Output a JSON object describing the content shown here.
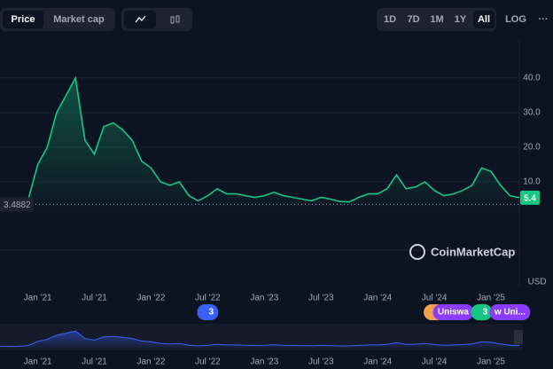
{
  "toolbar": {
    "left_tabs": [
      "Price",
      "Market cap"
    ],
    "ranges": [
      "1D",
      "7D",
      "1M",
      "1Y",
      "All"
    ],
    "log": "LOG",
    "more": "···"
  },
  "chart_data": {
    "type": "line",
    "x": [
      "2020-09",
      "2020-10",
      "2020-11",
      "2020-12",
      "2021-01",
      "2021-02",
      "2021-03",
      "2021-04",
      "2021-05",
      "2021-06",
      "2021-07",
      "2021-08",
      "2021-09",
      "2021-10",
      "2021-11",
      "2021-12",
      "2022-01",
      "2022-02",
      "2022-03",
      "2022-04",
      "2022-05",
      "2022-06",
      "2022-07",
      "2022-08",
      "2022-09",
      "2022-10",
      "2022-11",
      "2022-12",
      "2023-01",
      "2023-02",
      "2023-03",
      "2023-04",
      "2023-05",
      "2023-06",
      "2023-07",
      "2023-08",
      "2023-09",
      "2023-10",
      "2023-11",
      "2023-12",
      "2024-01",
      "2024-02",
      "2024-03",
      "2024-04",
      "2024-05",
      "2024-06",
      "2024-07",
      "2024-08",
      "2024-09",
      "2024-10",
      "2024-11",
      "2024-12",
      "2025-01",
      "2025-02",
      "2025-03",
      "2025-04"
    ],
    "series": [
      {
        "name": "Price",
        "color": "#16c784",
        "values": [
          3.5,
          3.0,
          3.5,
          5,
          15,
          20,
          30,
          35,
          40,
          22,
          18,
          26,
          27,
          25,
          22,
          16,
          14,
          10,
          9,
          10,
          6,
          4.5,
          6,
          8,
          6.5,
          6.5,
          6,
          5.5,
          6,
          7,
          6,
          5.5,
          5,
          4.5,
          5.5,
          5,
          4.3,
          4.2,
          5.5,
          6.5,
          6.5,
          8,
          12,
          8,
          8.5,
          10,
          7.5,
          6,
          6.5,
          7.5,
          9,
          14,
          13,
          9,
          6,
          5.4
        ]
      }
    ],
    "xlim": [
      "2020-09",
      "2025-04"
    ],
    "xticks": [
      {
        "value": "2021-01",
        "label": "Jan '21"
      },
      {
        "value": "2021-07",
        "label": "Jul '21"
      },
      {
        "value": "2022-01",
        "label": "Jan '22"
      },
      {
        "value": "2022-07",
        "label": "Jul '22"
      },
      {
        "value": "2023-01",
        "label": "Jan '23"
      },
      {
        "value": "2023-07",
        "label": "Jul '23"
      },
      {
        "value": "2024-01",
        "label": "Jan '24"
      },
      {
        "value": "2024-07",
        "label": "Jul '24"
      },
      {
        "value": "2025-01",
        "label": "Jan '25"
      }
    ],
    "ylim": [
      0,
      51
    ],
    "yticks": [
      {
        "value": 10,
        "label": "10.0"
      },
      {
        "value": 20,
        "label": "20.0"
      },
      {
        "value": 30,
        "label": "30.0"
      },
      {
        "value": 40,
        "label": "40.0"
      }
    ],
    "reference_line": {
      "value": 3.4882,
      "label": "3.4882"
    },
    "last_value": {
      "value": 5.4,
      "label": "5.4"
    },
    "y2_label": "USD",
    "watermark": "CoinMarketCap",
    "grid": true
  },
  "events": [
    {
      "label": "3",
      "date": "2022-07",
      "color": "#3861fb"
    },
    {
      "label": "2",
      "date": "2024-07",
      "color": "#f7a14d"
    },
    {
      "label": "Uniswa",
      "date": "2024-09",
      "color": "#8b3dff"
    },
    {
      "label": "3",
      "date": "2024-12",
      "color": "#16c784"
    },
    {
      "label": "w Uni...",
      "date": "2025-03",
      "color": "#8b3dff"
    }
  ]
}
